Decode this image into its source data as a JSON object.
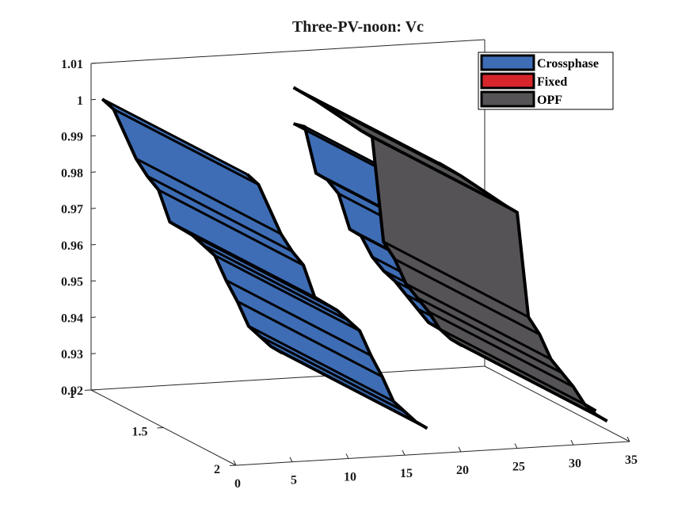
{
  "chart_data": {
    "type": "surface3d",
    "title": "Three-PV-noon: Vc",
    "xlabel": "",
    "ylabel": "",
    "zlabel": "",
    "x_ticks": [
      "0",
      "5",
      "10",
      "15",
      "20",
      "25",
      "30",
      "35"
    ],
    "y_ticks": [
      "1",
      "1.5",
      "2"
    ],
    "z_ticks": [
      "0.92",
      "0.93",
      "0.94",
      "0.95",
      "0.96",
      "0.97",
      "0.98",
      "0.99",
      "1",
      "1.01"
    ],
    "xlim": [
      0,
      35
    ],
    "ylim": [
      1,
      2
    ],
    "zlim": [
      0.92,
      1.01
    ],
    "grid": false,
    "legend_position": "top-right",
    "series": [
      {
        "name": "Crossphase",
        "color": "#3E6DB5"
      },
      {
        "name": "Fixed",
        "color": "#D7262B"
      },
      {
        "name": "OPF",
        "color": "#555356"
      }
    ],
    "crossphase_voltage": [
      [
        1,
        1.0
      ],
      [
        2,
        0.997
      ],
      [
        4,
        0.983
      ],
      [
        5,
        0.978
      ],
      [
        6,
        0.974
      ],
      [
        7,
        0.965
      ],
      [
        8,
        0.963
      ],
      [
        9,
        0.961
      ],
      [
        10,
        0.958
      ],
      [
        11,
        0.955
      ],
      [
        12,
        0.948
      ],
      [
        13,
        0.942
      ],
      [
        14,
        0.935
      ],
      [
        15,
        0.932
      ],
      [
        16,
        0.929
      ],
      [
        17,
        0.927
      ],
      [
        18,
        0.99
      ],
      [
        19,
        0.989
      ],
      [
        20,
        0.976
      ],
      [
        21,
        0.974
      ],
      [
        22,
        0.97
      ],
      [
        23,
        0.96
      ],
      [
        24,
        0.958
      ],
      [
        25,
        0.952
      ],
      [
        26,
        0.948
      ],
      [
        27,
        0.945
      ],
      [
        28,
        0.941
      ],
      [
        29,
        0.937
      ],
      [
        30,
        0.933
      ],
      [
        31,
        0.931
      ],
      [
        32,
        0.929
      ]
    ],
    "opf_voltage": [
      [
        18,
        1.0
      ],
      [
        19,
        0.998
      ],
      [
        20,
        0.996
      ],
      [
        24,
        0.987
      ],
      [
        25,
        0.985
      ],
      [
        26,
        0.956
      ],
      [
        27,
        0.951
      ],
      [
        28,
        0.944
      ],
      [
        29,
        0.94
      ],
      [
        30,
        0.936
      ],
      [
        31,
        0.931
      ],
      [
        32,
        0.928
      ],
      [
        33,
        0.926
      ]
    ]
  }
}
